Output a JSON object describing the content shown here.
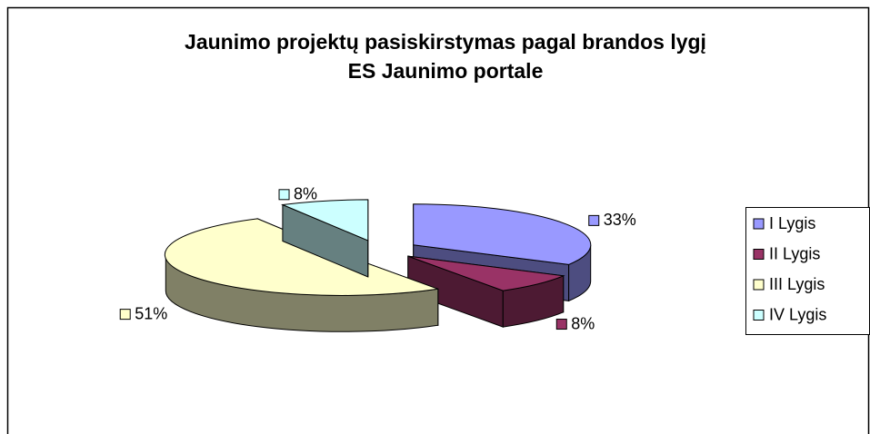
{
  "chart_data": {
    "type": "pie",
    "title": "Jaunimo projektų pasiskirstymas pagal brandos lygį ES Jaunimo portale",
    "categories": [
      "I Lygis",
      "II Lygis",
      "III Lygis",
      "IV Lygis"
    ],
    "values": [
      33,
      8,
      51,
      8
    ],
    "value_labels": [
      "33%",
      "8%",
      "51%",
      "8%"
    ],
    "colors": [
      "#9999ff",
      "#993366",
      "#ffffcc",
      "#ccffff"
    ],
    "legend": "right"
  }
}
